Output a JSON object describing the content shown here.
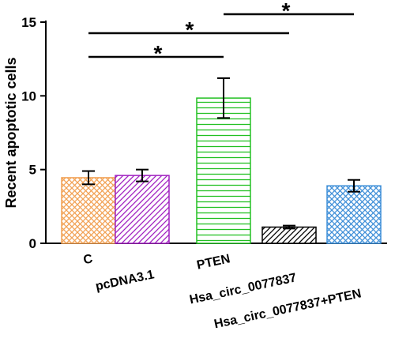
{
  "chart_data": {
    "type": "bar",
    "y_label": "Recent apoptotic cells",
    "categories": [
      "C",
      "pcDNA3.1",
      "PTEN",
      "Hsa_circ_0077837",
      "Hsa_circ_0077837+PTEN"
    ],
    "values": [
      4.45,
      4.6,
      9.85,
      1.1,
      3.9
    ],
    "errors": [
      0.45,
      0.4,
      1.35,
      0.1,
      0.4
    ],
    "colors": [
      "#f2a255",
      "#a020c0",
      "#22c022",
      "#000000",
      "#3f8fd8"
    ],
    "patterns": [
      "crosshatch",
      "diagonal",
      "horizontal",
      "diagonal",
      "crosshatch"
    ],
    "ylim": [
      0,
      15
    ],
    "yticks": [
      0,
      5,
      10,
      15
    ],
    "annotations": [
      {
        "text": "*"
      },
      {
        "text": "*"
      },
      {
        "text": "*"
      }
    ]
  }
}
